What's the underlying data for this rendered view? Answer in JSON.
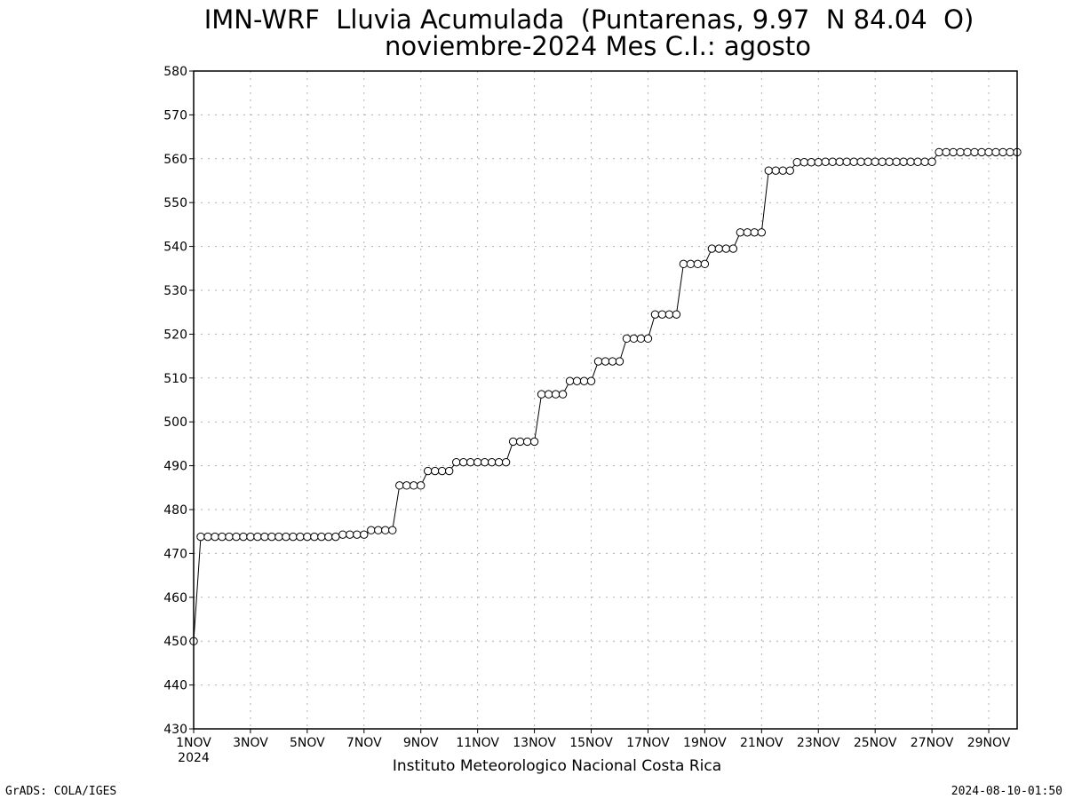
{
  "chart_data": {
    "type": "line",
    "title": "IMN-WRF  Lluvia Acumulada  (Puntarenas, 9.97  N 84.04  O)",
    "subtitle": "noviembre-2024 Mes C.I.: agosto",
    "xlabel": "",
    "ylabel": "",
    "ylim": [
      430,
      580
    ],
    "yticks": [
      430,
      440,
      450,
      460,
      470,
      480,
      490,
      500,
      510,
      520,
      530,
      540,
      550,
      560,
      570,
      580
    ],
    "xlim": [
      0,
      116
    ],
    "xticks": [
      {
        "x": 0,
        "label": "1NOV"
      },
      {
        "x": 8,
        "label": "3NOV"
      },
      {
        "x": 16,
        "label": "5NOV"
      },
      {
        "x": 24,
        "label": "7NOV"
      },
      {
        "x": 32,
        "label": "9NOV"
      },
      {
        "x": 40,
        "label": "11NOV"
      },
      {
        "x": 48,
        "label": "13NOV"
      },
      {
        "x": 56,
        "label": "15NOV"
      },
      {
        "x": 64,
        "label": "17NOV"
      },
      {
        "x": 72,
        "label": "19NOV"
      },
      {
        "x": 80,
        "label": "21NOV"
      },
      {
        "x": 88,
        "label": "23NOV"
      },
      {
        "x": 96,
        "label": "25NOV"
      },
      {
        "x": 104,
        "label": "27NOV"
      },
      {
        "x": 112,
        "label": "29NOV"
      }
    ],
    "year_label": "2024",
    "grid": true,
    "series": [
      {
        "values": [
          450,
          473.8,
          473.8,
          473.8,
          473.8,
          473.8,
          473.8,
          473.8,
          473.8,
          473.8,
          473.8,
          473.8,
          473.8,
          473.8,
          473.8,
          473.8,
          473.8,
          473.8,
          473.8,
          473.8,
          473.8,
          474.3,
          474.3,
          474.3,
          474.3,
          475.3,
          475.3,
          475.3,
          475.3,
          485.5,
          485.5,
          485.5,
          485.5,
          488.8,
          488.8,
          488.8,
          488.8,
          490.8,
          490.8,
          490.8,
          490.8,
          490.8,
          490.8,
          490.8,
          490.8,
          495.5,
          495.5,
          495.5,
          495.5,
          506.3,
          506.3,
          506.3,
          506.3,
          509.3,
          509.3,
          509.3,
          509.3,
          513.8,
          513.8,
          513.8,
          513.8,
          519,
          519,
          519,
          519,
          524.5,
          524.5,
          524.5,
          524.5,
          536,
          536,
          536,
          536,
          539.5,
          539.5,
          539.5,
          539.5,
          543.2,
          543.2,
          543.2,
          543.2,
          557.3,
          557.3,
          557.3,
          557.3,
          559.2,
          559.2,
          559.2,
          559.2,
          559.3,
          559.3,
          559.3,
          559.3,
          559.3,
          559.3,
          559.3,
          559.3,
          559.3,
          559.3,
          559.3,
          559.3,
          559.3,
          559.3,
          559.3,
          559.3,
          561.5,
          561.5,
          561.5,
          561.5,
          561.5,
          561.5,
          561.5,
          561.5,
          561.5,
          561.5,
          561.5,
          561.5
        ]
      }
    ]
  },
  "footer": {
    "credit_left": "GrADS: COLA/IGES",
    "institution": "Instituto Meteorologico Nacional Costa Rica",
    "timestamp": "2024-08-10-01:50"
  }
}
